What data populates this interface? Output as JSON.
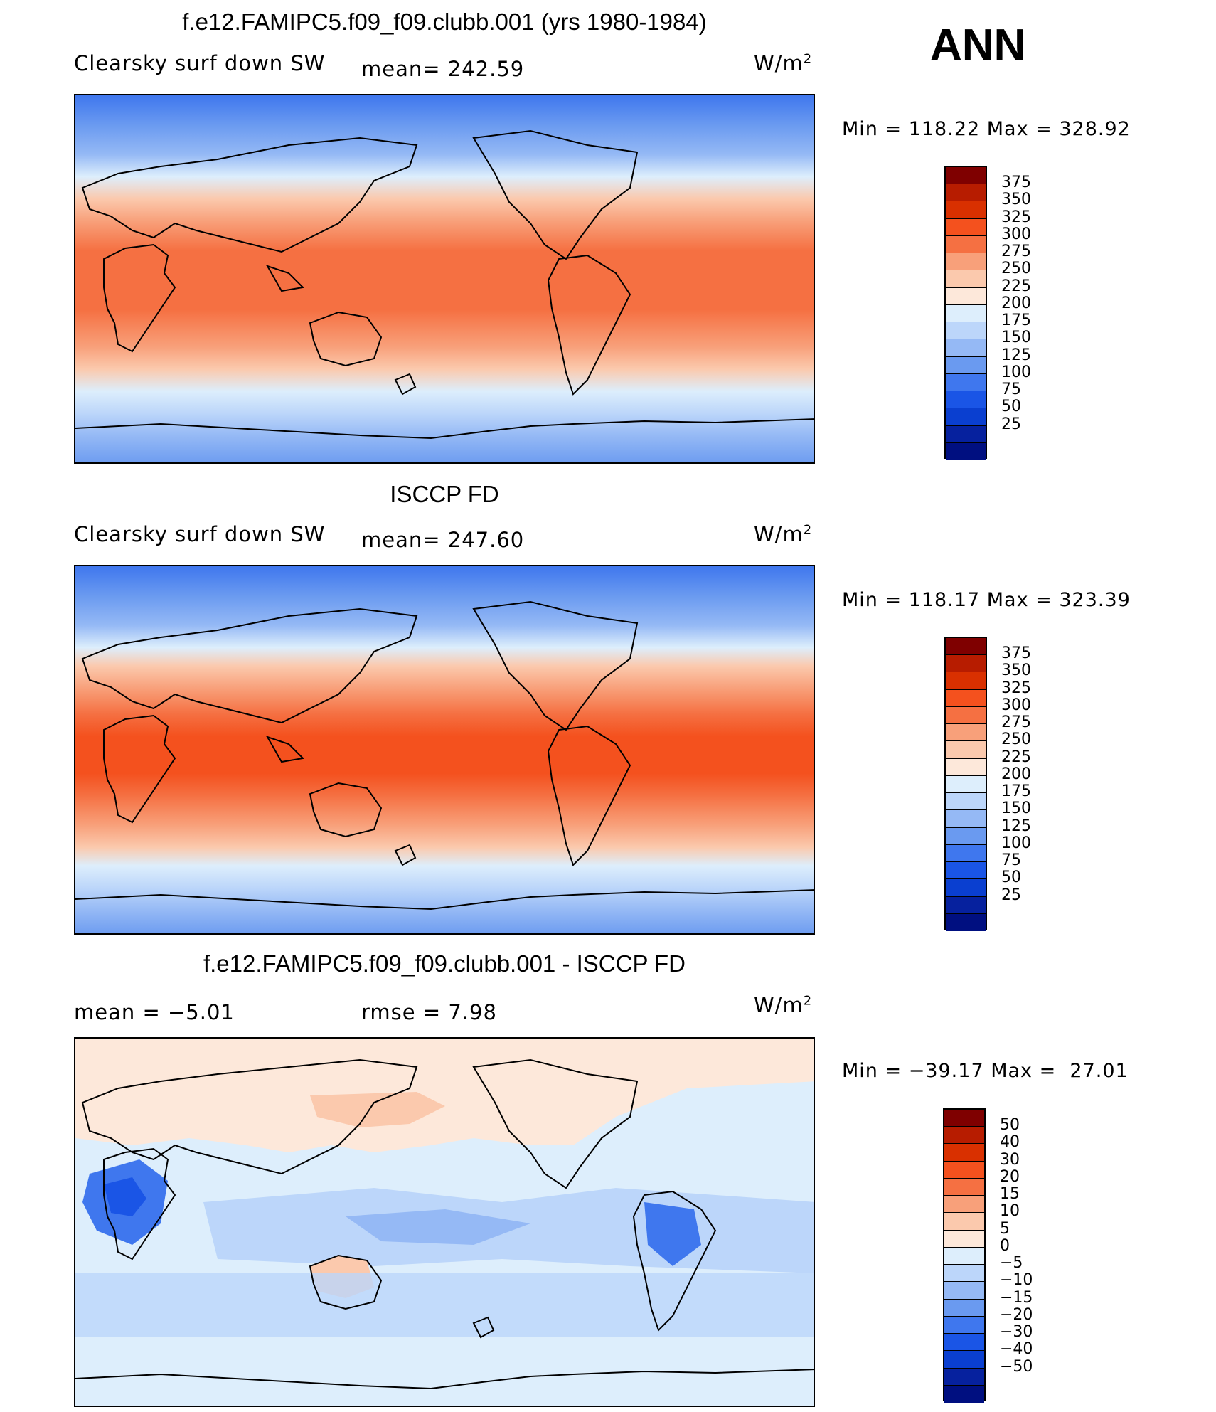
{
  "season": "ANN",
  "panels": [
    {
      "title": "f.e12.FAMIPC5.f09_f09.clubb.001 (yrs 1980-1984)",
      "left_label": "Clearsky surf down SW",
      "mid_label": "mean= 242.59",
      "units": "W/m",
      "units_sup": "2",
      "minmax": "Min = 118.22 Max = 328.92"
    },
    {
      "title": "ISCCP FD",
      "left_label": "Clearsky surf down SW",
      "mid_label": "mean= 247.60",
      "units": "W/m",
      "units_sup": "2",
      "minmax": "Min = 118.17 Max = 323.39"
    },
    {
      "title": "f.e12.FAMIPC5.f09_f09.clubb.001 - ISCCP FD",
      "left_label": "mean =   −5.01",
      "mid_label": "rmse =    7.98",
      "units": "W/m",
      "units_sup": "2",
      "minmax": "Min = −39.17 Max =  27.01"
    }
  ],
  "colorbar_abs": {
    "labels": [
      "375",
      "350",
      "325",
      "300",
      "275",
      "250",
      "225",
      "200",
      "175",
      "150",
      "125",
      "100",
      "75",
      "50",
      "25"
    ],
    "colors": [
      "#7f0000",
      "#b71c00",
      "#d93000",
      "#f4511e",
      "#f57042",
      "#f8a07a",
      "#fbc9ad",
      "#fde8da",
      "#ddeefc",
      "#bcd6fa",
      "#95b9f5",
      "#6a9af0",
      "#3f77ee",
      "#1a55e6",
      "#0a3fd0",
      "#06219e",
      "#000f80"
    ]
  },
  "colorbar_diff": {
    "labels": [
      "50",
      "40",
      "30",
      "20",
      "15",
      "10",
      "5",
      "0",
      "−5",
      "−10",
      "−15",
      "−20",
      "−30",
      "−40",
      "−50"
    ],
    "colors": [
      "#7f0000",
      "#b71c00",
      "#d93000",
      "#f4511e",
      "#f57042",
      "#f8a07a",
      "#fbc9ad",
      "#fde8da",
      "#ddeefc",
      "#bcd6fa",
      "#95b9f5",
      "#6a9af0",
      "#3f77ee",
      "#1a55e6",
      "#0a3fd0",
      "#06219e",
      "#000f80"
    ]
  }
}
